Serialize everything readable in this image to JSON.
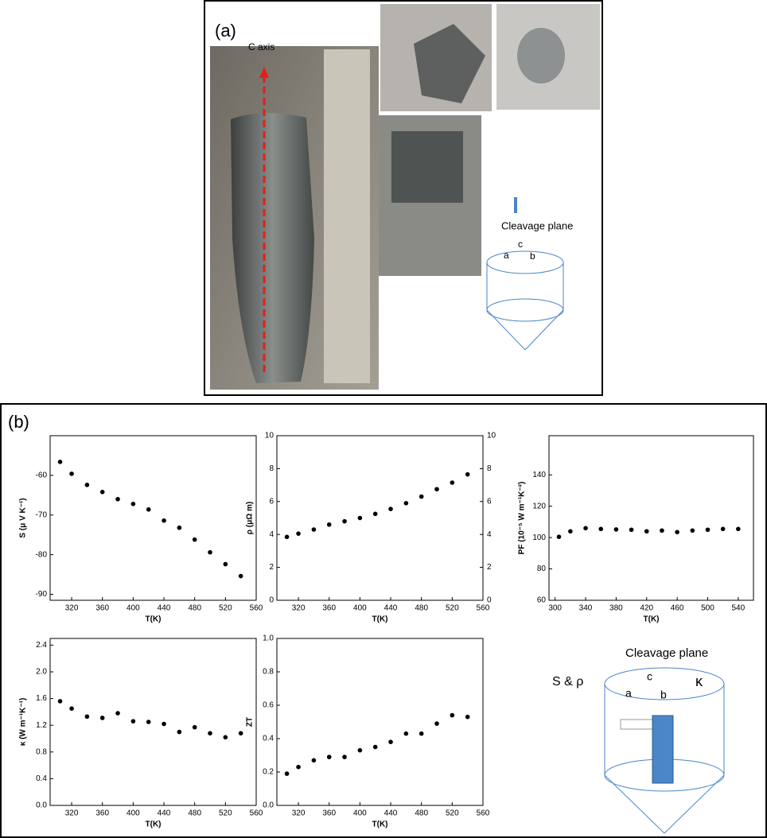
{
  "panel_a": {
    "label": "(a)",
    "c_axis": "C axis",
    "cleavage_plane": "Cleavage plane",
    "axes": [
      "a",
      "c",
      "b"
    ]
  },
  "panel_b": {
    "label": "(b)",
    "schematic": {
      "cleavage_plane": "Cleavage plane",
      "axes": [
        "a",
        "c",
        "b"
      ],
      "s_rho": "S & ρ",
      "kappa": "κ"
    }
  },
  "chart_data": [
    {
      "type": "scatter",
      "xlabel": "T(K)",
      "ylabel": "S (μ V K⁻¹)",
      "x": [
        305,
        320,
        340,
        360,
        380,
        400,
        420,
        440,
        460,
        480,
        500,
        520,
        540
      ],
      "series": [
        {
          "color": "#000000",
          "values": [
            -56.6,
            -59.6,
            -62.4,
            -64.2,
            -66,
            -67.2,
            -68.6,
            -71.4,
            -73.2,
            -76.2,
            -79.4,
            -82.4,
            -85.4
          ]
        }
      ],
      "xlim": [
        292,
        560
      ],
      "xticks": [
        320,
        360,
        400,
        440,
        480,
        520,
        560
      ],
      "ylim": [
        -91.5,
        -50
      ],
      "yticks": [
        -90,
        -80,
        -70,
        -60
      ]
    },
    {
      "type": "scatter",
      "xlabel": "T(K)",
      "ylabel": "ρ (μΩ m)",
      "x": [
        305,
        320,
        340,
        360,
        380,
        400,
        420,
        440,
        460,
        480,
        500,
        520,
        540
      ],
      "series": [
        {
          "color": "#000000",
          "values": [
            3.85,
            4.05,
            4.3,
            4.6,
            4.8,
            5.0,
            5.25,
            5.55,
            5.9,
            6.3,
            6.75,
            7.15,
            7.65
          ]
        }
      ],
      "xlim": [
        292,
        560
      ],
      "xticks": [
        320,
        360,
        400,
        440,
        480,
        520,
        560
      ],
      "ylim": [
        0,
        10
      ],
      "yticks": [
        0,
        2,
        4,
        6,
        8,
        10
      ],
      "y2lim": [
        0,
        10
      ],
      "y2ticks": [
        0,
        2,
        4,
        6,
        8,
        10
      ]
    },
    {
      "type": "scatter",
      "xlabel": "T(K)",
      "ylabel": "PF (10⁻⁵ W m⁻¹K⁻²)",
      "x": [
        305,
        320,
        340,
        360,
        380,
        400,
        420,
        440,
        460,
        480,
        500,
        520,
        540
      ],
      "series": [
        {
          "color": "#000000",
          "values": [
            100.5,
            104,
            106,
            105.5,
            105.2,
            105,
            104,
            104.5,
            103.5,
            104.5,
            105,
            105.5,
            105.5
          ]
        }
      ],
      "xlim": [
        292,
        560
      ],
      "xticks": [
        300,
        340,
        380,
        420,
        460,
        500,
        540
      ],
      "ylim": [
        60,
        165
      ],
      "yticks": [
        60,
        80,
        100,
        120,
        140
      ]
    },
    {
      "type": "scatter",
      "xlabel": "T(K)",
      "ylabel": "κ (W m⁻¹K⁻¹)",
      "x": [
        305,
        320,
        340,
        360,
        380,
        400,
        420,
        440,
        460,
        480,
        500,
        520,
        540
      ],
      "series": [
        {
          "color": "#000000",
          "values": [
            1.56,
            1.45,
            1.33,
            1.31,
            1.38,
            1.26,
            1.25,
            1.22,
            1.1,
            1.17,
            1.08,
            1.02,
            1.08
          ]
        }
      ],
      "xlim": [
        292,
        560
      ],
      "xticks": [
        320,
        360,
        400,
        440,
        480,
        520,
        560
      ],
      "ylim": [
        0,
        2.5
      ],
      "yticks": [
        {
          "value": 0,
          "label": "0.0"
        },
        0.4,
        0.8,
        1.2,
        1.6,
        {
          "value": 2,
          "label": "2.0"
        },
        2.4
      ]
    },
    {
      "type": "scatter",
      "xlabel": "T(K)",
      "ylabel": "ZT",
      "x": [
        305,
        320,
        340,
        360,
        380,
        400,
        420,
        440,
        460,
        480,
        500,
        520,
        540
      ],
      "series": [
        {
          "color": "#000000",
          "values": [
            0.19,
            0.23,
            0.27,
            0.29,
            0.29,
            0.33,
            0.35,
            0.38,
            0.43,
            0.43,
            0.49,
            0.54,
            0.53
          ]
        }
      ],
      "xlim": [
        292,
        560
      ],
      "xticks": [
        320,
        360,
        400,
        440,
        480,
        520,
        560
      ],
      "ylim": [
        0,
        1
      ],
      "yticks": [
        {
          "value": 0,
          "label": "0.0"
        },
        0.2,
        0.4,
        0.6,
        0.8,
        {
          "value": 1,
          "label": "1.0"
        }
      ]
    }
  ]
}
